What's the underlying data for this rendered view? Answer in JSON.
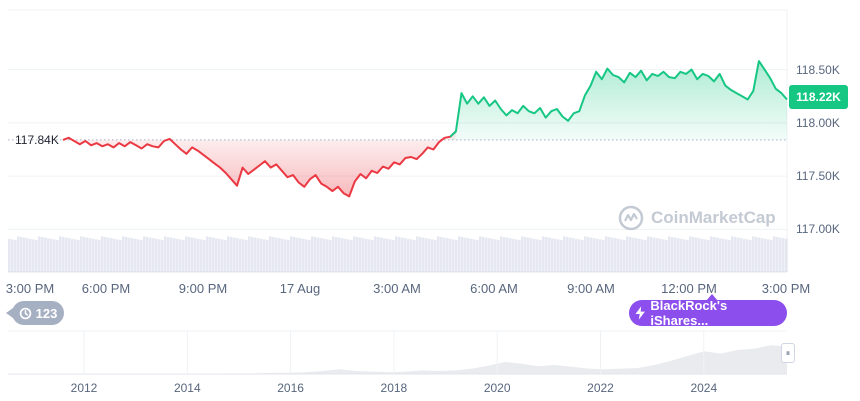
{
  "chart_data": {
    "type": "area",
    "series": [
      {
        "name": "",
        "baseline": 117.84,
        "x_start": "15:00",
        "x_end": "15:00",
        "values": [
          117.84,
          117.86,
          117.83,
          117.8,
          117.83,
          117.79,
          117.81,
          117.78,
          117.8,
          117.77,
          117.81,
          117.78,
          117.82,
          117.79,
          117.76,
          117.8,
          117.78,
          117.77,
          117.83,
          117.85,
          117.8,
          117.75,
          117.71,
          117.77,
          117.74,
          117.7,
          117.66,
          117.62,
          117.58,
          117.53,
          117.47,
          117.41,
          117.58,
          117.52,
          117.56,
          117.6,
          117.64,
          117.58,
          117.61,
          117.55,
          117.49,
          117.51,
          117.44,
          117.4,
          117.47,
          117.51,
          117.43,
          117.4,
          117.36,
          117.4,
          117.34,
          117.31,
          117.45,
          117.52,
          117.48,
          117.55,
          117.53,
          117.59,
          117.57,
          117.63,
          117.61,
          117.67,
          117.68,
          117.66,
          117.71,
          117.77,
          117.75,
          117.82,
          117.86,
          117.87,
          117.92,
          118.28,
          118.18,
          118.25,
          118.18,
          118.24,
          118.16,
          118.21,
          118.13,
          118.07,
          118.12,
          118.09,
          118.16,
          118.11,
          118.09,
          118.14,
          118.05,
          118.11,
          118.13,
          118.06,
          118.02,
          118.09,
          118.11,
          118.26,
          118.35,
          118.48,
          118.41,
          118.51,
          118.45,
          118.43,
          118.38,
          118.47,
          118.43,
          118.49,
          118.4,
          118.46,
          118.44,
          118.48,
          118.43,
          118.42,
          118.48,
          118.46,
          118.5,
          118.41,
          118.46,
          118.44,
          118.39,
          118.46,
          118.35,
          118.31,
          118.28,
          118.25,
          118.22,
          118.3,
          118.58,
          118.5,
          118.42,
          118.32,
          118.28,
          118.22
        ]
      }
    ],
    "x_tick_labels": [
      "3:00 PM",
      "6:00 PM",
      "9:00 PM",
      "17 Aug",
      "3:00 AM",
      "6:00 AM",
      "9:00 AM",
      "12:00 PM",
      "3:00 PM"
    ],
    "y_tick_labels": [
      "118.50K",
      "118.00K",
      "117.50K",
      "117.00K"
    ],
    "ylim": [
      116.6,
      119.06
    ],
    "open_label": "117.84K",
    "current_label": "118.22K",
    "colors": {
      "up": "#16c784",
      "down": "#ea3943",
      "volume": "#cfd6e4",
      "grid": "#eff2f5"
    },
    "navigator": {
      "year_labels": [
        "2012",
        "2014",
        "2016",
        "2018",
        "2020",
        "2022",
        "2024"
      ],
      "values": [
        0,
        0,
        0,
        0,
        0,
        0,
        0,
        0,
        0,
        0,
        0,
        0,
        0,
        0.01,
        0.01,
        0.01,
        0.02,
        0.02,
        0.03,
        0.05,
        0.08,
        0.05,
        0.04,
        0.03,
        0.04,
        0.06,
        0.05,
        0.06,
        0.09,
        0.14,
        0.2,
        0.17,
        0.13,
        0.15,
        0.12,
        0.09,
        0.08,
        0.09,
        0.1,
        0.15,
        0.22,
        0.3,
        0.38,
        0.34,
        0.4,
        0.42,
        0.48,
        0.46
      ]
    }
  },
  "history_button": {
    "icon": "history-icon",
    "count": "123"
  },
  "event_button": {
    "icon": "lightning-icon",
    "label": "BlackRock's iShares..."
  },
  "watermark": {
    "text": "CoinMarketCap",
    "icon": "coinmarketcap-logo"
  }
}
